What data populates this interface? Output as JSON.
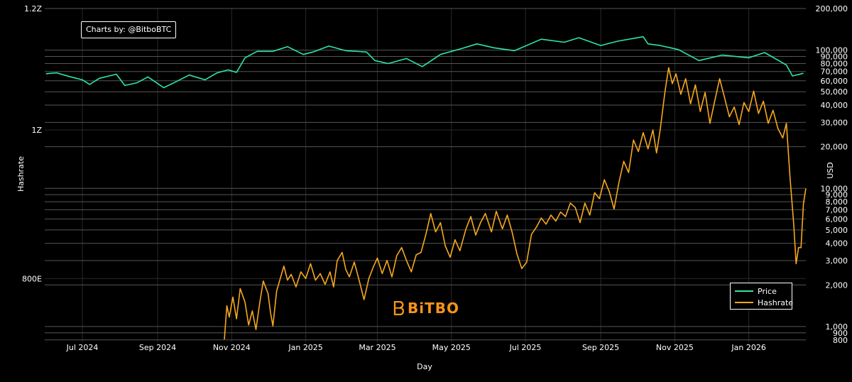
{
  "chart_data": {
    "type": "line",
    "credit": "Charts by: @BitboBTC",
    "watermark": "BiTBO",
    "xlabel": "Day",
    "ylabel_left": "Hashrate",
    "ylabel_right": "USD",
    "x_ticks": [
      "Jul 2024",
      "Sep 2024",
      "Nov 2024",
      "Jan 2025",
      "Mar 2025",
      "May 2025",
      "Jul 2025",
      "Sep 2025",
      "Nov 2025",
      "Jan 2026"
    ],
    "x_range": [
      "2024-05-31",
      "2026-02-17"
    ],
    "y_left_ticks": [
      "1.2Z",
      "1Z",
      "800E"
    ],
    "y_left_scale": "log",
    "y_left_range_EH": [
      727,
      1200
    ],
    "y_right_ticks": [
      "200,000",
      "100,000",
      "90,000",
      "80,000",
      "70,000",
      "60,000",
      "50,000",
      "40,000",
      "30,000",
      "20,000",
      "10,000",
      "9,000",
      "8,000",
      "7,000",
      "6,000",
      "5,000",
      "4,000",
      "3,000",
      "2,000",
      "1,000",
      "900",
      "800"
    ],
    "y_right_scale": "log",
    "y_right_range_usd": [
      770,
      200000
    ],
    "grid": true,
    "legend_position": "bottom-right",
    "series": [
      {
        "name": "Price",
        "axis": "right",
        "color": "#2ee6a0",
        "points": [
          [
            "2024-06-01",
            67500
          ],
          [
            "2024-06-10",
            68500
          ],
          [
            "2024-06-20",
            64500
          ],
          [
            "2024-07-01",
            61000
          ],
          [
            "2024-07-07",
            56500
          ],
          [
            "2024-07-15",
            62500
          ],
          [
            "2024-07-29",
            67000
          ],
          [
            "2024-08-05",
            55500
          ],
          [
            "2024-08-15",
            58000
          ],
          [
            "2024-08-24",
            64000
          ],
          [
            "2024-09-06",
            53500
          ],
          [
            "2024-09-16",
            59000
          ],
          [
            "2024-09-27",
            66000
          ],
          [
            "2024-10-10",
            61000
          ],
          [
            "2024-10-20",
            68500
          ],
          [
            "2024-10-29",
            72000
          ],
          [
            "2024-11-05",
            69000
          ],
          [
            "2024-11-12",
            88000
          ],
          [
            "2024-11-22",
            98000
          ],
          [
            "2024-12-05",
            98000
          ],
          [
            "2024-12-17",
            106000
          ],
          [
            "2024-12-30",
            93000
          ],
          [
            "2025-01-07",
            97000
          ],
          [
            "2025-01-20",
            107000
          ],
          [
            "2025-02-03",
            99000
          ],
          [
            "2025-02-20",
            97000
          ],
          [
            "2025-02-27",
            84000
          ],
          [
            "2025-03-10",
            80000
          ],
          [
            "2025-03-25",
            87000
          ],
          [
            "2025-04-07",
            76000
          ],
          [
            "2025-04-22",
            93000
          ],
          [
            "2025-05-10",
            103000
          ],
          [
            "2025-05-22",
            111000
          ],
          [
            "2025-06-05",
            104000
          ],
          [
            "2025-06-22",
            99000
          ],
          [
            "2025-07-14",
            120000
          ],
          [
            "2025-08-02",
            114000
          ],
          [
            "2025-08-14",
            123000
          ],
          [
            "2025-09-01",
            108000
          ],
          [
            "2025-09-15",
            116000
          ],
          [
            "2025-10-06",
            125000
          ],
          [
            "2025-10-10",
            111000
          ],
          [
            "2025-10-20",
            108000
          ],
          [
            "2025-11-04",
            101000
          ],
          [
            "2025-11-21",
            84000
          ],
          [
            "2025-12-10",
            92000
          ],
          [
            "2026-01-01",
            88000
          ],
          [
            "2026-01-14",
            96000
          ],
          [
            "2026-02-01",
            78000
          ],
          [
            "2026-02-06",
            65000
          ],
          [
            "2026-02-15",
            68000
          ]
        ]
      },
      {
        "name": "Hashrate",
        "axis": "left",
        "color": "#f7a81e",
        "points": [
          [
            "2024-10-26",
            730
          ],
          [
            "2024-10-28",
            768
          ],
          [
            "2024-10-30",
            755
          ],
          [
            "2024-11-02",
            778
          ],
          [
            "2024-11-05",
            753
          ],
          [
            "2024-11-08",
            788
          ],
          [
            "2024-11-12",
            772
          ],
          [
            "2024-11-15",
            746
          ],
          [
            "2024-11-18",
            762
          ],
          [
            "2024-11-21",
            741
          ],
          [
            "2024-11-24",
            770
          ],
          [
            "2024-11-27",
            797
          ],
          [
            "2024-12-01",
            782
          ],
          [
            "2024-12-03",
            760
          ],
          [
            "2024-12-05",
            745
          ],
          [
            "2024-12-08",
            785
          ],
          [
            "2024-12-11",
            800
          ],
          [
            "2024-12-14",
            815
          ],
          [
            "2024-12-17",
            798
          ],
          [
            "2024-12-20",
            805
          ],
          [
            "2024-12-24",
            790
          ],
          [
            "2024-12-28",
            808
          ],
          [
            "2025-01-01",
            800
          ],
          [
            "2025-01-05",
            818
          ],
          [
            "2025-01-09",
            798
          ],
          [
            "2025-01-13",
            806
          ],
          [
            "2025-01-17",
            793
          ],
          [
            "2025-01-21",
            808
          ],
          [
            "2025-01-24",
            790
          ],
          [
            "2025-01-27",
            822
          ],
          [
            "2025-01-31",
            832
          ],
          [
            "2025-02-03",
            811
          ],
          [
            "2025-02-06",
            802
          ],
          [
            "2025-02-10",
            820
          ],
          [
            "2025-02-14",
            798
          ],
          [
            "2025-02-18",
            775
          ],
          [
            "2025-02-22",
            800
          ],
          [
            "2025-02-26",
            815
          ],
          [
            "2025-03-01",
            825
          ],
          [
            "2025-03-05",
            806
          ],
          [
            "2025-03-09",
            822
          ],
          [
            "2025-03-13",
            802
          ],
          [
            "2025-03-17",
            828
          ],
          [
            "2025-03-21",
            838
          ],
          [
            "2025-03-25",
            822
          ],
          [
            "2025-03-29",
            808
          ],
          [
            "2025-04-02",
            829
          ],
          [
            "2025-04-06",
            832
          ],
          [
            "2025-04-10",
            855
          ],
          [
            "2025-04-14",
            882
          ],
          [
            "2025-04-18",
            858
          ],
          [
            "2025-04-22",
            870
          ],
          [
            "2025-04-26",
            840
          ],
          [
            "2025-04-30",
            826
          ],
          [
            "2025-05-04",
            848
          ],
          [
            "2025-05-08",
            834
          ],
          [
            "2025-05-13",
            862
          ],
          [
            "2025-05-17",
            878
          ],
          [
            "2025-05-21",
            854
          ],
          [
            "2025-05-25",
            870
          ],
          [
            "2025-05-29",
            882
          ],
          [
            "2025-06-03",
            858
          ],
          [
            "2025-06-07",
            885
          ],
          [
            "2025-06-12",
            862
          ],
          [
            "2025-06-16",
            880
          ],
          [
            "2025-06-20",
            858
          ],
          [
            "2025-06-24",
            830
          ],
          [
            "2025-06-28",
            812
          ],
          [
            "2025-07-02",
            820
          ],
          [
            "2025-07-06",
            855
          ],
          [
            "2025-07-10",
            864
          ],
          [
            "2025-07-14",
            876
          ],
          [
            "2025-07-18",
            868
          ],
          [
            "2025-07-22",
            880
          ],
          [
            "2025-07-26",
            872
          ],
          [
            "2025-07-30",
            884
          ],
          [
            "2025-08-03",
            878
          ],
          [
            "2025-08-07",
            896
          ],
          [
            "2025-08-11",
            890
          ],
          [
            "2025-08-15",
            870
          ],
          [
            "2025-08-19",
            896
          ],
          [
            "2025-08-23",
            880
          ],
          [
            "2025-08-27",
            910
          ],
          [
            "2025-08-31",
            902
          ],
          [
            "2025-09-04",
            928
          ],
          [
            "2025-09-08",
            912
          ],
          [
            "2025-09-12",
            888
          ],
          [
            "2025-09-16",
            924
          ],
          [
            "2025-09-20",
            954
          ],
          [
            "2025-09-24",
            938
          ],
          [
            "2025-09-28",
            985
          ],
          [
            "2025-10-02",
            968
          ],
          [
            "2025-10-06",
            996
          ],
          [
            "2025-10-10",
            972
          ],
          [
            "2025-10-14",
            1000
          ],
          [
            "2025-10-17",
            966
          ],
          [
            "2025-10-20",
            1000
          ],
          [
            "2025-10-24",
            1060
          ],
          [
            "2025-10-27",
            1098
          ],
          [
            "2025-10-30",
            1072
          ],
          [
            "2025-11-02",
            1088
          ],
          [
            "2025-11-06",
            1055
          ],
          [
            "2025-11-10",
            1080
          ],
          [
            "2025-11-14",
            1040
          ],
          [
            "2025-11-18",
            1070
          ],
          [
            "2025-11-22",
            1028
          ],
          [
            "2025-11-26",
            1058
          ],
          [
            "2025-11-30",
            1010
          ],
          [
            "2025-12-04",
            1045
          ],
          [
            "2025-12-08",
            1080
          ],
          [
            "2025-12-12",
            1050
          ],
          [
            "2025-12-16",
            1020
          ],
          [
            "2025-12-20",
            1035
          ],
          [
            "2025-12-24",
            1008
          ],
          [
            "2025-12-28",
            1042
          ],
          [
            "2026-01-01",
            1028
          ],
          [
            "2026-01-05",
            1060
          ],
          [
            "2026-01-09",
            1025
          ],
          [
            "2026-01-13",
            1044
          ],
          [
            "2026-01-17",
            1010
          ],
          [
            "2026-01-21",
            1030
          ],
          [
            "2026-01-25",
            1002
          ],
          [
            "2026-01-29",
            988
          ],
          [
            "2026-02-01",
            1010
          ],
          [
            "2026-02-04",
            930
          ],
          [
            "2026-02-07",
            868
          ],
          [
            "2026-02-09",
            818
          ],
          [
            "2026-02-11",
            838
          ],
          [
            "2026-02-13",
            838
          ],
          [
            "2026-02-15",
            895
          ],
          [
            "2026-02-17",
            916
          ]
        ]
      }
    ]
  }
}
